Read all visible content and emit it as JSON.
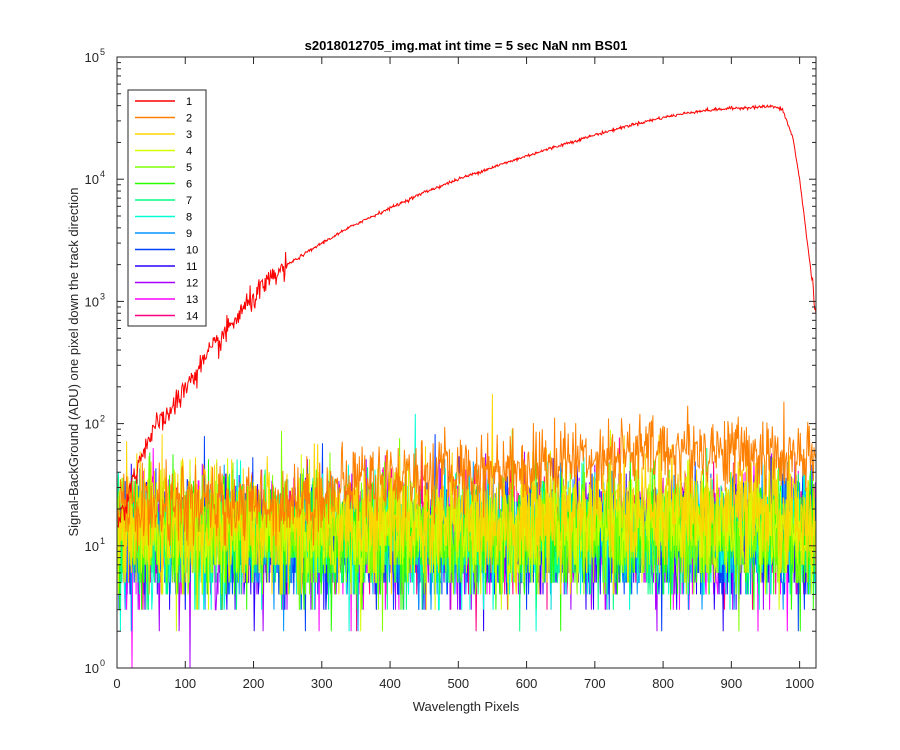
{
  "chart_data": {
    "type": "line",
    "title": "s2018012705_img.mat int time = 5 sec  NaN nm BS01",
    "xlabel": "Wavelength Pixels",
    "ylabel": "Signal-BackGround (ADU) one pixel down the track direction",
    "xlim": [
      0,
      1024
    ],
    "ylim": [
      1,
      100000
    ],
    "yscale": "log",
    "xticks": [
      0,
      100,
      200,
      300,
      400,
      500,
      600,
      700,
      800,
      900,
      1000
    ],
    "yticks": [
      {
        "base": "10",
        "exp": "0",
        "value": 1
      },
      {
        "base": "10",
        "exp": "1",
        "value": 10
      },
      {
        "base": "10",
        "exp": "2",
        "value": 100
      },
      {
        "base": "10",
        "exp": "3",
        "value": 1000
      },
      {
        "base": "10",
        "exp": "4",
        "value": 10000
      },
      {
        "base": "10",
        "exp": "5",
        "value": 100000
      }
    ],
    "grid": false,
    "legend_position": "top-left",
    "series": [
      {
        "name": "1",
        "color": "#ff0000",
        "profile": {
          "x": [
            1,
            20,
            40,
            60,
            80,
            100,
            150,
            200,
            250,
            300,
            350,
            400,
            450,
            500,
            550,
            600,
            650,
            700,
            750,
            800,
            850,
            900,
            940,
            960,
            975,
            990,
            1000,
            1010,
            1024
          ],
          "y": [
            15,
            30,
            65,
            100,
            130,
            200,
            480,
            1100,
            2000,
            3000,
            4300,
            5800,
            7800,
            10000,
            12500,
            15500,
            19000,
            23000,
            27500,
            32000,
            36000,
            38000,
            39000,
            39500,
            37000,
            22000,
            10000,
            3500,
            800
          ]
        }
      },
      {
        "name": "2",
        "color": "#ff8000",
        "profile": {
          "x": [
            1,
            200,
            300,
            350,
            500,
            600,
            700,
            800,
            860,
            900,
            1000,
            1024
          ],
          "y": [
            20,
            22,
            25,
            35,
            40,
            45,
            55,
            60,
            62,
            60,
            50,
            45
          ]
        }
      },
      {
        "name": "3",
        "color": "#ffd500",
        "profile": {
          "x": [
            1,
            500,
            800,
            1024
          ],
          "y": [
            14,
            16,
            20,
            18
          ]
        }
      },
      {
        "name": "4",
        "color": "#d4ff00",
        "profile": {
          "x": [
            1,
            1024
          ],
          "y": [
            13,
            15
          ]
        }
      },
      {
        "name": "5",
        "color": "#80ff00",
        "profile": {
          "x": [
            1,
            1024
          ],
          "y": [
            12,
            13
          ]
        }
      },
      {
        "name": "6",
        "color": "#2bff00",
        "profile": {
          "x": [
            1,
            1024
          ],
          "y": [
            12,
            13
          ]
        }
      },
      {
        "name": "7",
        "color": "#00ff80",
        "profile": {
          "x": [
            1,
            1024
          ],
          "y": [
            11,
            12
          ]
        }
      },
      {
        "name": "8",
        "color": "#00ffd5",
        "profile": {
          "x": [
            1,
            1024
          ],
          "y": [
            11,
            12
          ]
        }
      },
      {
        "name": "9",
        "color": "#0095ff",
        "profile": {
          "x": [
            1,
            1024
          ],
          "y": [
            11,
            12
          ]
        }
      },
      {
        "name": "10",
        "color": "#0040ff",
        "profile": {
          "x": [
            1,
            1024
          ],
          "y": [
            11,
            12
          ]
        }
      },
      {
        "name": "11",
        "color": "#2b00ff",
        "profile": {
          "x": [
            1,
            1024
          ],
          "y": [
            11,
            12
          ]
        }
      },
      {
        "name": "12",
        "color": "#aa00ff",
        "profile": {
          "x": [
            1,
            1024
          ],
          "y": [
            11,
            12
          ]
        }
      },
      {
        "name": "13",
        "color": "#ff00ff",
        "profile": {
          "x": [
            1,
            1024
          ],
          "y": [
            11,
            12
          ]
        }
      },
      {
        "name": "14",
        "color": "#ff0080",
        "profile": {
          "x": [
            1,
            1024
          ],
          "y": [
            12,
            13
          ]
        }
      }
    ]
  }
}
